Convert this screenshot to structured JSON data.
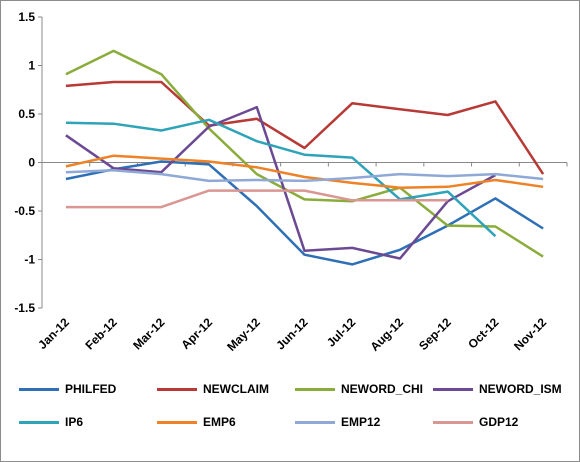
{
  "chart_data": {
    "type": "line",
    "title": "",
    "xlabel": "",
    "ylabel": "",
    "categories": [
      "Jan-12",
      "Feb-12",
      "Mar-12",
      "Apr-12",
      "May-12",
      "Jun-12",
      "Jul-12",
      "Aug-12",
      "Sep-12",
      "Oct-12",
      "Nov-12"
    ],
    "ylim": [
      -1.5,
      1.5
    ],
    "yticks": [
      "1.5",
      "1",
      "0.5",
      "0",
      "-0.5",
      "-1",
      "-1.5"
    ],
    "ytick_values": [
      1.5,
      1,
      0.5,
      0,
      -0.5,
      -1,
      -1.5
    ],
    "grid": false,
    "legend_position": "bottom",
    "series": [
      {
        "name": "PHILFED",
        "color": "#2e6fb5",
        "values": [
          -0.17,
          -0.07,
          0.01,
          -0.02,
          -0.45,
          -0.95,
          -1.05,
          -0.9,
          -0.65,
          -0.37,
          -0.68
        ]
      },
      {
        "name": "NEWCLAIM",
        "color": "#b83a36",
        "values": [
          0.79,
          0.83,
          0.83,
          0.38,
          0.45,
          0.15,
          0.61,
          0.55,
          0.49,
          0.63,
          -0.12
        ]
      },
      {
        "name": "NEWORD_CHI",
        "color": "#8aac3a",
        "values": [
          0.91,
          1.15,
          0.91,
          0.35,
          -0.12,
          -0.38,
          -0.4,
          -0.26,
          -0.65,
          -0.66,
          -0.97
        ]
      },
      {
        "name": "NEWORD_ISM",
        "color": "#6b4a93",
        "values": [
          0.28,
          -0.06,
          -0.1,
          0.37,
          0.57,
          -0.91,
          -0.88,
          -0.99,
          -0.4,
          -0.13,
          null
        ]
      },
      {
        "name": "IP6",
        "color": "#2fa3b8",
        "values": [
          0.41,
          0.4,
          0.33,
          0.44,
          0.22,
          0.08,
          0.05,
          -0.38,
          -0.3,
          -0.76,
          null
        ]
      },
      {
        "name": "EMP6",
        "color": "#ee8226",
        "values": [
          -0.04,
          0.07,
          0.04,
          0.01,
          -0.05,
          -0.15,
          -0.21,
          -0.26,
          -0.25,
          -0.18,
          -0.25
        ]
      },
      {
        "name": "EMP12",
        "color": "#8fa8d6",
        "values": [
          -0.1,
          -0.08,
          -0.12,
          -0.19,
          -0.18,
          -0.19,
          -0.16,
          -0.12,
          -0.14,
          -0.12,
          -0.17
        ]
      },
      {
        "name": "GDP12",
        "color": "#d99692",
        "values": [
          -0.46,
          -0.46,
          -0.46,
          -0.29,
          -0.29,
          -0.29,
          -0.39,
          -0.39,
          -0.39,
          null,
          null
        ]
      }
    ]
  }
}
